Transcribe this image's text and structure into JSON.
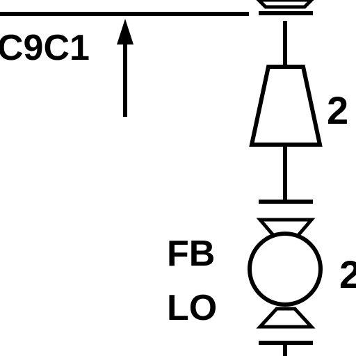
{
  "diagram": {
    "line_label": "C9C1",
    "reducer_tag": "2",
    "valve_tag": "2",
    "valve_status_line1": "FB",
    "valve_status_line2": "LO"
  },
  "colors": {
    "stroke": "#000000",
    "background": "#ffffff"
  }
}
